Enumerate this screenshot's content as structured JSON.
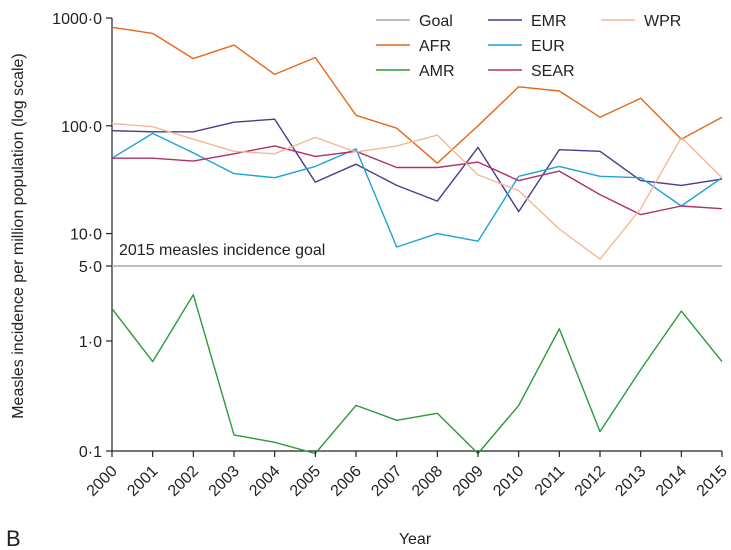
{
  "panel_label": "B",
  "chart_data": {
    "type": "line",
    "xlabel": "Year",
    "ylabel": "Measles incidence per million population (log scale)",
    "yscale": "log",
    "ylim": [
      0.1,
      1000
    ],
    "yticks": [
      {
        "value": 1000,
        "label": "1000·0"
      },
      {
        "value": 100,
        "label": "100·0"
      },
      {
        "value": 10,
        "label": "10·0"
      },
      {
        "value": 5,
        "label": "5·0"
      },
      {
        "value": 1,
        "label": "1·0"
      },
      {
        "value": 0.1,
        "label": "0·1"
      }
    ],
    "x": [
      "2000",
      "2001",
      "2002",
      "2003",
      "2004",
      "2005",
      "2006",
      "2007",
      "2008",
      "2009",
      "2010",
      "2011",
      "2012",
      "2013",
      "2014",
      "2015"
    ],
    "goal": {
      "name": "Goal",
      "value": 5,
      "label": "2015 measles incidence goal",
      "color": "#aaaaaa"
    },
    "legend_position": "top-right",
    "series": [
      {
        "name": "AFR",
        "color": "#e2691e",
        "values": [
          820,
          720,
          420,
          560,
          300,
          430,
          125,
          95,
          45,
          100,
          230,
          210,
          120,
          180,
          75,
          120
        ]
      },
      {
        "name": "AMR",
        "color": "#2a9a3c",
        "values": [
          2.0,
          0.65,
          2.7,
          0.14,
          0.12,
          0.095,
          0.26,
          0.19,
          0.22,
          0.095,
          0.26,
          1.3,
          0.15,
          0.55,
          1.9,
          0.65
        ]
      },
      {
        "name": "EMR",
        "color": "#4b3a8c",
        "values": [
          90,
          88,
          88,
          108,
          115,
          30,
          44,
          28,
          20,
          63,
          16,
          60,
          58,
          31,
          28,
          32
        ]
      },
      {
        "name": "EUR",
        "color": "#1ba3d6",
        "values": [
          50,
          85,
          56,
          36,
          33,
          42,
          61,
          7.5,
          10,
          8.5,
          34,
          42,
          34,
          33,
          18,
          33
        ]
      },
      {
        "name": "SEAR",
        "color": "#b0306a",
        "values": [
          50,
          50,
          47,
          55,
          65,
          52,
          58,
          41,
          41,
          46,
          31,
          38,
          23,
          15,
          18,
          17
        ]
      },
      {
        "name": "WPR",
        "color": "#f3b996",
        "values": [
          105,
          98,
          75,
          58,
          55,
          78,
          57,
          65,
          82,
          35,
          25,
          11,
          5.8,
          17,
          78,
          33
        ]
      }
    ]
  }
}
